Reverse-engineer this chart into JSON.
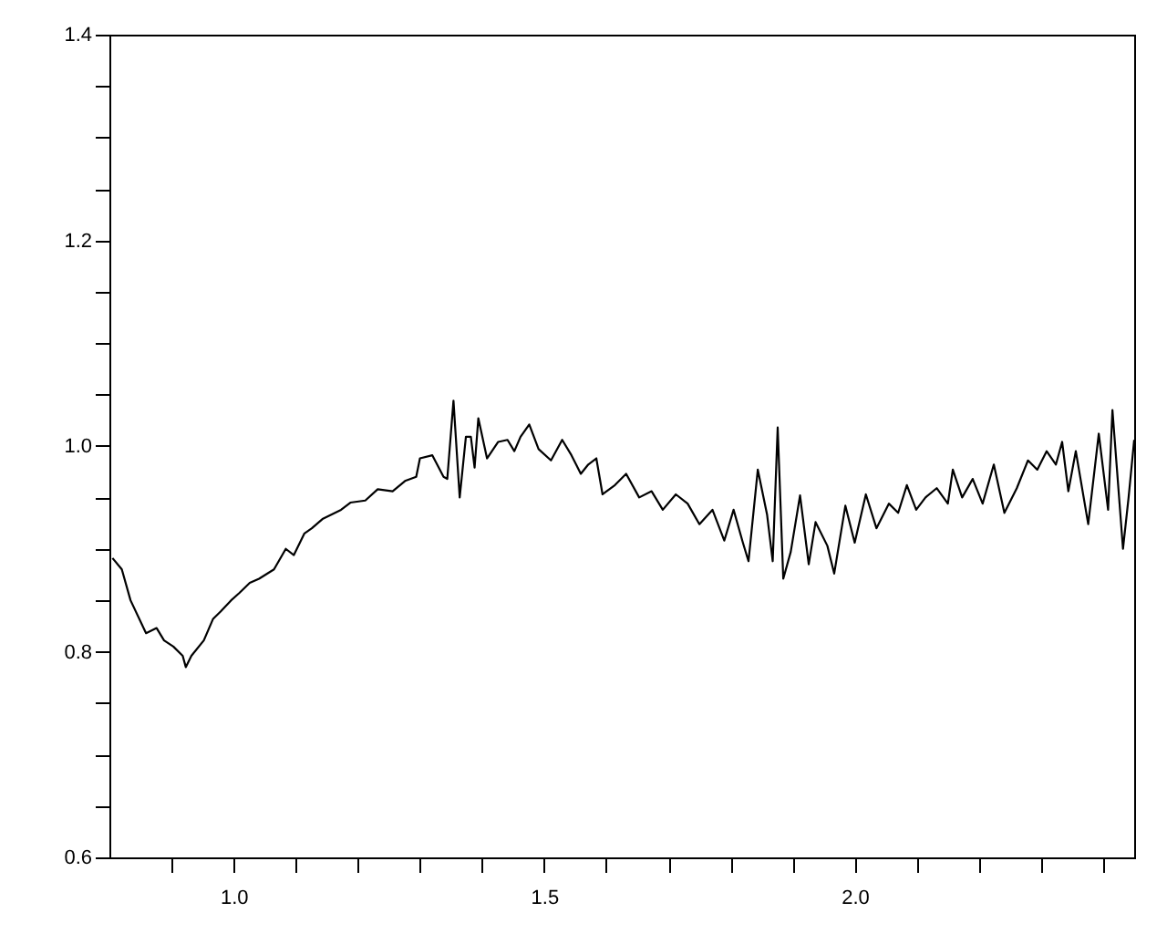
{
  "chart_data": {
    "type": "line",
    "color": "#000000",
    "xlim": [
      0.8,
      2.45
    ],
    "ylim": [
      0.6,
      1.4
    ],
    "xticks": [
      {
        "value": 0.9,
        "label": null
      },
      {
        "value": 1.0,
        "label": "1.0"
      },
      {
        "value": 1.1,
        "label": null
      },
      {
        "value": 1.2,
        "label": null
      },
      {
        "value": 1.3,
        "label": null
      },
      {
        "value": 1.4,
        "label": null
      },
      {
        "value": 1.5,
        "label": "1.5"
      },
      {
        "value": 1.6,
        "label": null
      },
      {
        "value": 1.7,
        "label": null
      },
      {
        "value": 1.8,
        "label": null
      },
      {
        "value": 1.9,
        "label": null
      },
      {
        "value": 2.0,
        "label": "2.0"
      },
      {
        "value": 2.1,
        "label": null
      },
      {
        "value": 2.2,
        "label": null
      },
      {
        "value": 2.3,
        "label": null
      },
      {
        "value": 2.4,
        "label": null
      }
    ],
    "yticks": [
      {
        "value": 0.6,
        "label": "0.6"
      },
      {
        "value": 0.65,
        "label": null
      },
      {
        "value": 0.7,
        "label": null
      },
      {
        "value": 0.75,
        "label": null
      },
      {
        "value": 0.8,
        "label": "0.8"
      },
      {
        "value": 0.85,
        "label": null
      },
      {
        "value": 0.9,
        "label": null
      },
      {
        "value": 0.95,
        "label": null
      },
      {
        "value": 1.0,
        "label": "1.0"
      },
      {
        "value": 1.05,
        "label": null
      },
      {
        "value": 1.1,
        "label": null
      },
      {
        "value": 1.15,
        "label": null
      },
      {
        "value": 1.2,
        "label": "1.2"
      },
      {
        "value": 1.25,
        "label": null
      },
      {
        "value": 1.3,
        "label": null
      },
      {
        "value": 1.35,
        "label": null
      },
      {
        "value": 1.4,
        "label": "1.4"
      }
    ],
    "x": [
      0.805,
      0.82,
      0.834,
      0.859,
      0.876,
      0.888,
      0.903,
      0.918,
      0.923,
      0.932,
      0.952,
      0.967,
      0.979,
      0.996,
      1.009,
      1.026,
      1.041,
      1.065,
      1.084,
      1.097,
      1.114,
      1.126,
      1.143,
      1.173,
      1.188,
      1.212,
      1.232,
      1.256,
      1.276,
      1.294,
      1.3,
      1.32,
      1.338,
      1.344,
      1.354,
      1.364,
      1.374,
      1.382,
      1.388,
      1.394,
      1.408,
      1.426,
      1.441,
      1.452,
      1.462,
      1.476,
      1.491,
      1.511,
      1.529,
      1.544,
      1.559,
      1.571,
      1.584,
      1.594,
      1.614,
      1.632,
      1.653,
      1.673,
      1.691,
      1.712,
      1.731,
      1.75,
      1.771,
      1.79,
      1.805,
      1.82,
      1.829,
      1.844,
      1.859,
      1.868,
      1.876,
      1.885,
      1.897,
      1.912,
      1.926,
      1.937,
      1.956,
      1.967,
      1.985,
      2.0,
      2.018,
      2.035,
      2.055,
      2.07,
      2.084,
      2.099,
      2.114,
      2.132,
      2.15,
      2.158,
      2.173,
      2.19,
      2.206,
      2.224,
      2.241,
      2.261,
      2.279,
      2.294,
      2.309,
      2.324,
      2.334,
      2.344,
      2.356,
      2.376,
      2.393,
      2.408,
      2.415,
      2.432,
      2.441,
      2.45
    ],
    "values": [
      0.891,
      0.88,
      0.85,
      0.818,
      0.823,
      0.811,
      0.805,
      0.796,
      0.785,
      0.796,
      0.811,
      0.832,
      0.839,
      0.85,
      0.857,
      0.867,
      0.871,
      0.88,
      0.9,
      0.894,
      0.915,
      0.92,
      0.929,
      0.938,
      0.945,
      0.947,
      0.958,
      0.956,
      0.966,
      0.97,
      0.988,
      0.991,
      0.97,
      0.968,
      1.044,
      0.95,
      1.009,
      1.009,
      0.979,
      1.027,
      0.988,
      1.004,
      1.006,
      0.995,
      1.009,
      1.021,
      0.997,
      0.986,
      1.006,
      0.991,
      0.973,
      0.982,
      0.988,
      0.953,
      0.962,
      0.973,
      0.95,
      0.956,
      0.938,
      0.953,
      0.944,
      0.924,
      0.938,
      0.908,
      0.938,
      0.906,
      0.888,
      0.977,
      0.933,
      0.888,
      1.018,
      0.871,
      0.897,
      0.952,
      0.885,
      0.926,
      0.903,
      0.876,
      0.942,
      0.906,
      0.953,
      0.92,
      0.944,
      0.935,
      0.962,
      0.938,
      0.95,
      0.959,
      0.944,
      0.977,
      0.95,
      0.968,
      0.944,
      0.982,
      0.935,
      0.959,
      0.986,
      0.977,
      0.995,
      0.982,
      1.004,
      0.956,
      0.995,
      0.924,
      1.012,
      0.938,
      1.035,
      0.9,
      0.95,
      1.006
    ]
  }
}
